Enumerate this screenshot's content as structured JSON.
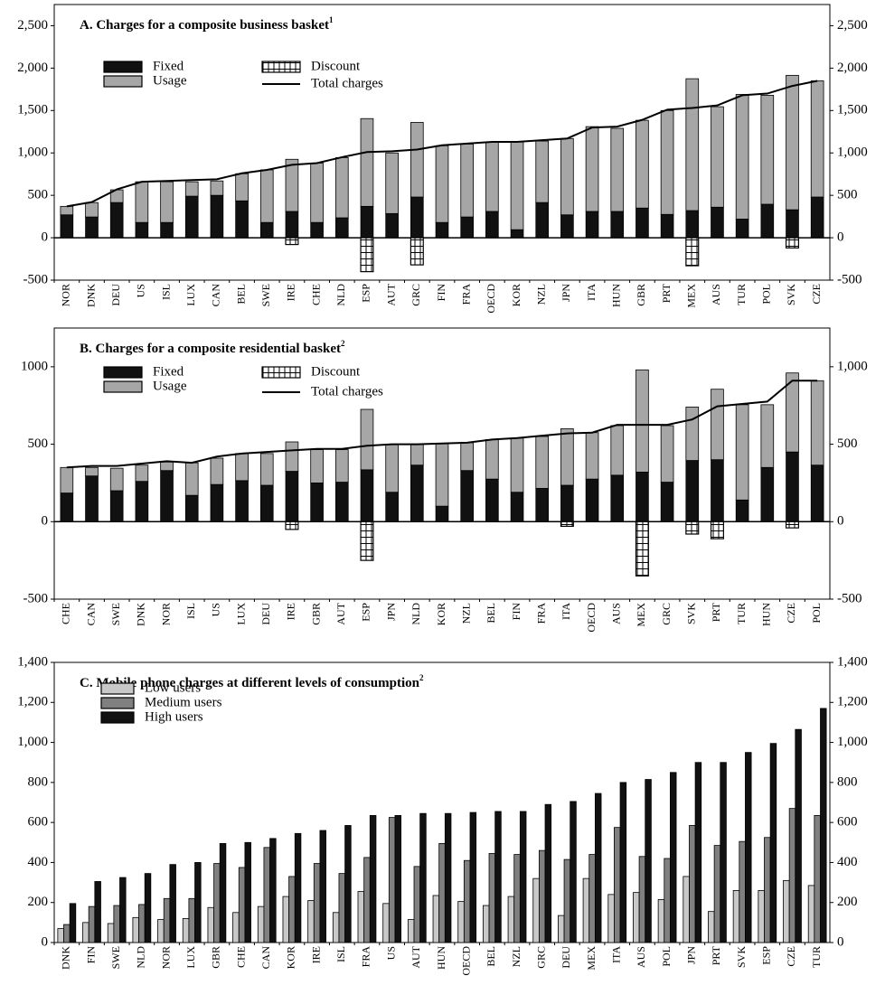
{
  "chart_data": [
    {
      "type": "bar",
      "stacked": true,
      "title": "A. Charges for a composite business basket",
      "title_superscript": "1",
      "categories": [
        "NOR",
        "DNK",
        "DEU",
        "US",
        "ISL",
        "LUX",
        "CAN",
        "BEL",
        "SWE",
        "IRE",
        "CHE",
        "NLD",
        "ESP",
        "AUT",
        "GRC",
        "FIN",
        "FRA",
        "OECD",
        "KOR",
        "NZL",
        "JPN",
        "ITA",
        "HUN",
        "GBR",
        "PRT",
        "MEX",
        "AUS",
        "TUR",
        "POL",
        "SVK",
        "CZE"
      ],
      "series": [
        {
          "name": "Fixed",
          "type": "bar",
          "color": "#111111",
          "values": [
            270,
            245,
            415,
            180,
            180,
            490,
            500,
            435,
            180,
            310,
            180,
            235,
            370,
            285,
            480,
            180,
            245,
            310,
            95,
            415,
            270,
            310,
            310,
            350,
            275,
            320,
            360,
            220,
            395,
            330,
            480
          ]
        },
        {
          "name": "Usage",
          "type": "bar",
          "color": "#a6a6a6",
          "values": [
            100,
            170,
            150,
            480,
            480,
            170,
            170,
            320,
            620,
            615,
            700,
            710,
            1035,
            715,
            880,
            905,
            860,
            820,
            1035,
            725,
            900,
            1000,
            980,
            1035,
            1225,
            1555,
            1185,
            1470,
            1285,
            1585,
            1370
          ]
        },
        {
          "name": "Discount",
          "type": "bar",
          "pattern": "hatch",
          "color": "#000000",
          "values": [
            null,
            null,
            null,
            null,
            null,
            null,
            null,
            null,
            null,
            -80,
            null,
            null,
            -400,
            null,
            -320,
            null,
            null,
            null,
            null,
            null,
            null,
            null,
            null,
            null,
            null,
            -330,
            null,
            null,
            null,
            -120,
            null
          ]
        },
        {
          "name": "Total charges",
          "type": "line",
          "color": "#000000",
          "values": [
            370,
            420,
            570,
            660,
            670,
            680,
            690,
            760,
            800,
            860,
            880,
            950,
            1010,
            1020,
            1040,
            1090,
            1110,
            1130,
            1130,
            1150,
            1170,
            1300,
            1310,
            1390,
            1510,
            1530,
            1560,
            1680,
            1700,
            1790,
            1850
          ]
        }
      ],
      "ylim": [
        -500,
        2750
      ],
      "yticks": [
        {
          "value": -500,
          "label": "-500"
        },
        0,
        500,
        {
          "value": 1000,
          "label": "1,000"
        },
        {
          "value": 1500,
          "label": "1,500"
        },
        {
          "value": 2000,
          "label": "2,000"
        },
        {
          "value": 2500,
          "label": "2,500"
        }
      ],
      "y2lim": [
        -500,
        2750
      ],
      "y2ticks": [
        {
          "value": -500,
          "label": "-500"
        },
        0,
        500,
        {
          "value": 1000,
          "label": "1,000"
        },
        {
          "value": 1500,
          "label": "1,500"
        },
        {
          "value": 2000,
          "label": "2,000"
        },
        {
          "value": 2500,
          "label": "2,500"
        }
      ],
      "grid": false
    },
    {
      "type": "bar",
      "stacked": true,
      "title": "B. Charges for a composite residential basket",
      "title_superscript": "2",
      "categories": [
        "CHE",
        "CAN",
        "SWE",
        "DNK",
        "NOR",
        "ISL",
        "US",
        "LUX",
        "DEU",
        "IRE",
        "GBR",
        "AUT",
        "ESP",
        "JPN",
        "NLD",
        "KOR",
        "NZL",
        "BEL",
        "FIN",
        "FRA",
        "ITA",
        "OECD",
        "AUS",
        "MEX",
        "GRC",
        "SVK",
        "PRT",
        "TUR",
        "HUN",
        "CZE",
        "POL"
      ],
      "series": [
        {
          "name": "Fixed",
          "type": "bar",
          "color": "#111111",
          "values": [
            185,
            295,
            200,
            260,
            330,
            170,
            240,
            265,
            235,
            325,
            250,
            255,
            335,
            190,
            365,
            100,
            330,
            275,
            190,
            215,
            235,
            275,
            300,
            320,
            255,
            395,
            400,
            140,
            350,
            450,
            365
          ]
        },
        {
          "name": "Usage",
          "type": "bar",
          "color": "#a6a6a6",
          "values": [
            165,
            55,
            145,
            105,
            55,
            210,
            170,
            175,
            205,
            190,
            215,
            210,
            390,
            310,
            135,
            405,
            180,
            255,
            350,
            335,
            365,
            300,
            320,
            660,
            365,
            345,
            455,
            615,
            405,
            510,
            545
          ]
        },
        {
          "name": "Discount",
          "type": "bar",
          "pattern": "hatch",
          "color": "#000000",
          "values": [
            null,
            null,
            null,
            null,
            null,
            null,
            null,
            null,
            null,
            -50,
            null,
            null,
            -250,
            null,
            null,
            null,
            null,
            null,
            null,
            null,
            -30,
            null,
            null,
            -350,
            null,
            -80,
            -110,
            null,
            null,
            -40,
            null
          ]
        },
        {
          "name": "Total charges",
          "type": "line",
          "color": "#000000",
          "values": [
            350,
            360,
            360,
            375,
            390,
            380,
            420,
            440,
            450,
            460,
            470,
            470,
            490,
            500,
            500,
            505,
            510,
            530,
            540,
            555,
            570,
            575,
            625,
            625,
            625,
            660,
            745,
            760,
            775,
            910,
            910
          ]
        }
      ],
      "ylim": [
        -500,
        1250
      ],
      "yticks": [
        {
          "value": -500,
          "label": "-500"
        },
        0,
        500,
        1000
      ],
      "y2lim": [
        -500,
        1250
      ],
      "y2ticks": [
        {
          "value": -500,
          "label": "-500"
        },
        0,
        500,
        {
          "value": 1000,
          "label": "1,000"
        }
      ],
      "grid": false
    },
    {
      "type": "bar",
      "stacked": false,
      "title": "C. Mobile phone charges at different levels of consumption",
      "title_superscript": "2",
      "categories": [
        "DNK",
        "FIN",
        "SWE",
        "NLD",
        "NOR",
        "LUX",
        "GBR",
        "CHE",
        "CAN",
        "KOR",
        "IRE",
        "ISL",
        "FRA",
        "US",
        "AUT",
        "HUN",
        "OECD",
        "BEL",
        "NZL",
        "GRC",
        "DEU",
        "MEX",
        "ITA",
        "AUS",
        "POL",
        "JPN",
        "PRT",
        "SVK",
        "ESP",
        "CZE",
        "TUR"
      ],
      "series": [
        {
          "name": "Low users",
          "type": "bar",
          "color": "#c8c8c8",
          "values": [
            70,
            100,
            95,
            125,
            115,
            120,
            175,
            150,
            180,
            230,
            210,
            150,
            255,
            195,
            115,
            235,
            205,
            185,
            230,
            320,
            135,
            320,
            240,
            250,
            215,
            330,
            155,
            260,
            260,
            310,
            285
          ]
        },
        {
          "name": "Medium users",
          "type": "bar",
          "color": "#808080",
          "values": [
            90,
            180,
            185,
            190,
            220,
            220,
            395,
            375,
            475,
            330,
            395,
            345,
            425,
            625,
            380,
            495,
            410,
            445,
            440,
            460,
            415,
            440,
            575,
            430,
            420,
            585,
            485,
            505,
            525,
            670,
            635
          ]
        },
        {
          "name": "High users",
          "type": "bar",
          "color": "#111111",
          "values": [
            195,
            305,
            325,
            345,
            390,
            400,
            495,
            500,
            520,
            545,
            560,
            585,
            635,
            635,
            645,
            645,
            650,
            655,
            655,
            690,
            705,
            745,
            800,
            815,
            850,
            900,
            900,
            950,
            995,
            1065,
            1170
          ]
        }
      ],
      "ylim": [
        0,
        1400
      ],
      "yticks": [
        0,
        200,
        400,
        600,
        800,
        {
          "value": 1000,
          "label": "1,000"
        },
        {
          "value": 1200,
          "label": "1,200"
        },
        {
          "value": 1400,
          "label": "1,400"
        }
      ],
      "y2lim": [
        0,
        1400
      ],
      "y2ticks": [
        0,
        200,
        400,
        600,
        800,
        {
          "value": 1000,
          "label": "1,000"
        },
        {
          "value": 1200,
          "label": "1,200"
        },
        {
          "value": 1400,
          "label": "1,400"
        }
      ],
      "grid": false
    }
  ]
}
